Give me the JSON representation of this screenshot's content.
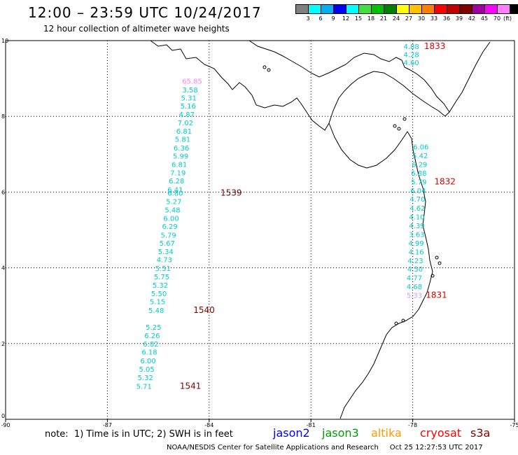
{
  "header": {
    "title": "12:00 – 23:59 UTC 10/24/2017",
    "subtitle": "12 hour collection of altimeter wave heights"
  },
  "legend": {
    "colors": [
      "#808080",
      "#00ffff",
      "#00b0f0",
      "#0000ff",
      "#00ffff",
      "#40e040",
      "#00c000",
      "#008000",
      "#ffff00",
      "#ffc000",
      "#ff8000",
      "#ff0000",
      "#c00000",
      "#800000",
      "#a000a0",
      "#ff00ff",
      "#ff80ff",
      "#000000"
    ],
    "labels": [
      "3",
      "6",
      "9",
      "12",
      "15",
      "18",
      "21",
      "24",
      "27",
      "30",
      "33",
      "36",
      "39",
      "42",
      "45",
      "70"
    ],
    "unit": "(ft)"
  },
  "map": {
    "lon_min": -90,
    "lon_max": -75,
    "lat_min": 0,
    "lat_max": 10,
    "x_ticks": [
      "-90",
      "-87",
      "-84",
      "-81",
      "-78",
      "-75"
    ],
    "y_ticks": [
      "0",
      "2",
      "4",
      "6",
      "8",
      "10"
    ],
    "tracks": [
      {
        "color": "#00cccc",
        "points": [
          {
            "lon": -78.04,
            "lat": 9.85,
            "swh": "4.88"
          },
          {
            "lon": -78.04,
            "lat": 9.64,
            "swh": "4.28"
          },
          {
            "lon": -78.04,
            "lat": 9.43,
            "swh": "4.60"
          }
        ]
      },
      {
        "color": "#00cccc",
        "points": [
          {
            "lon": -77.76,
            "lat": 7.2,
            "swh": "6.06"
          },
          {
            "lon": -77.78,
            "lat": 6.97,
            "swh": "5.42"
          },
          {
            "lon": -77.8,
            "lat": 6.74,
            "swh": "6.29"
          },
          {
            "lon": -77.82,
            "lat": 6.51,
            "swh": "6.88"
          },
          {
            "lon": -77.82,
            "lat": 6.28,
            "swh": "5.79"
          },
          {
            "lon": -77.84,
            "lat": 6.04,
            "swh": "6.04"
          },
          {
            "lon": -77.86,
            "lat": 5.82,
            "swh": "4.70"
          },
          {
            "lon": -77.86,
            "lat": 5.58,
            "swh": "4.62"
          },
          {
            "lon": -77.88,
            "lat": 5.35,
            "swh": "4.10"
          },
          {
            "lon": -77.88,
            "lat": 5.12,
            "swh": "4.39"
          },
          {
            "lon": -77.88,
            "lat": 4.89,
            "swh": "3.63"
          },
          {
            "lon": -77.9,
            "lat": 4.66,
            "swh": "4.99"
          },
          {
            "lon": -77.9,
            "lat": 4.43,
            "swh": "4.16"
          },
          {
            "lon": -77.92,
            "lat": 4.2,
            "swh": "4.23"
          },
          {
            "lon": -77.93,
            "lat": 3.97,
            "swh": "4.50"
          },
          {
            "lon": -77.95,
            "lat": 3.74,
            "swh": "4.77"
          },
          {
            "lon": -77.95,
            "lat": 3.51,
            "swh": "4.68"
          }
        ]
      },
      {
        "color": "#c0a0ff",
        "points": [
          {
            "lon": -77.95,
            "lat": 3.28,
            "swh": "5.33"
          }
        ]
      },
      {
        "color": "#ff80ff",
        "points": [
          {
            "lon": -84.5,
            "lat": 8.94,
            "swh": "65.85"
          }
        ]
      },
      {
        "color": "#00cccc",
        "points": [
          {
            "lon": -84.56,
            "lat": 8.71,
            "swh": "3.58"
          },
          {
            "lon": -84.6,
            "lat": 8.49,
            "swh": "5.31"
          },
          {
            "lon": -84.62,
            "lat": 8.28,
            "swh": "5.16"
          },
          {
            "lon": -84.66,
            "lat": 8.06,
            "swh": "4.87"
          },
          {
            "lon": -84.7,
            "lat": 7.84,
            "swh": "7.02"
          },
          {
            "lon": -84.74,
            "lat": 7.62,
            "swh": "6.81"
          },
          {
            "lon": -84.78,
            "lat": 7.4,
            "swh": "5.81"
          },
          {
            "lon": -84.82,
            "lat": 7.17,
            "swh": "6.36"
          },
          {
            "lon": -84.84,
            "lat": 6.96,
            "swh": "5.99"
          },
          {
            "lon": -84.88,
            "lat": 6.74,
            "swh": "6.81"
          },
          {
            "lon": -84.92,
            "lat": 6.52,
            "swh": "7.19"
          },
          {
            "lon": -84.96,
            "lat": 6.3,
            "swh": "6.28"
          },
          {
            "lon": -85.0,
            "lat": 6.07,
            "swh": "6.41"
          },
          {
            "lon": -85.0,
            "lat": 5.98,
            "swh": "6.80"
          },
          {
            "lon": -85.04,
            "lat": 5.76,
            "swh": "5.27"
          },
          {
            "lon": -85.08,
            "lat": 5.54,
            "swh": "5.48"
          },
          {
            "lon": -85.12,
            "lat": 5.31,
            "swh": "6.00"
          },
          {
            "lon": -85.16,
            "lat": 5.1,
            "swh": "6.29"
          },
          {
            "lon": -85.2,
            "lat": 4.87,
            "swh": "5.79"
          },
          {
            "lon": -85.24,
            "lat": 4.66,
            "swh": "5.67"
          },
          {
            "lon": -85.28,
            "lat": 4.44,
            "swh": "5.34"
          },
          {
            "lon": -85.32,
            "lat": 4.22,
            "swh": "4.73"
          },
          {
            "lon": -85.36,
            "lat": 3.99,
            "swh": "5.51"
          },
          {
            "lon": -85.4,
            "lat": 3.77,
            "swh": "5.75"
          },
          {
            "lon": -85.44,
            "lat": 3.55,
            "swh": "5.32"
          },
          {
            "lon": -85.48,
            "lat": 3.33,
            "swh": "5.50"
          },
          {
            "lon": -85.52,
            "lat": 3.11,
            "swh": "5.15"
          },
          {
            "lon": -85.56,
            "lat": 2.88,
            "swh": "5.48"
          },
          {
            "lon": -85.64,
            "lat": 2.44,
            "swh": "5.25"
          },
          {
            "lon": -85.68,
            "lat": 2.22,
            "swh": "6.26"
          },
          {
            "lon": -85.72,
            "lat": 2.0,
            "swh": "6.82"
          },
          {
            "lon": -85.76,
            "lat": 1.78,
            "swh": "6.18"
          },
          {
            "lon": -85.8,
            "lat": 1.55,
            "swh": "6.00"
          },
          {
            "lon": -85.84,
            "lat": 1.33,
            "swh": "5.05"
          },
          {
            "lon": -85.88,
            "lat": 1.11,
            "swh": "5.32"
          },
          {
            "lon": -85.92,
            "lat": 0.88,
            "swh": "5.71"
          }
        ]
      }
    ],
    "time_labels": [
      {
        "lon": -77.35,
        "lat": 9.85,
        "text": "1833",
        "color": "#e00000"
      },
      {
        "lon": -77.05,
        "lat": 6.28,
        "text": "1832",
        "color": "#e00000"
      },
      {
        "lon": -77.3,
        "lat": 3.28,
        "text": "1831",
        "color": "#e00000"
      },
      {
        "lon": -83.35,
        "lat": 5.98,
        "text": "1539",
        "color": "#800000"
      },
      {
        "lon": -84.15,
        "lat": 2.88,
        "text": "1540",
        "color": "#800000"
      },
      {
        "lon": -84.55,
        "lat": 0.88,
        "text": "1541",
        "color": "#800000"
      }
    ]
  },
  "note": "note:  1) Time is in UTC; 2) SWH is in feet",
  "satellites": [
    {
      "name": "jason2",
      "color": "#0000ff"
    },
    {
      "name": "jason3",
      "color": "#00a000"
    },
    {
      "name": "altika",
      "color": "#ff9900"
    },
    {
      "name": "cryosat",
      "color": "#ff0000"
    },
    {
      "name": "s3a",
      "color": "#800000"
    }
  ],
  "footer": "NOAA/NESDIS Center for Satellite Applications and Research     Oct 25 12:27:53 UTC 2017"
}
